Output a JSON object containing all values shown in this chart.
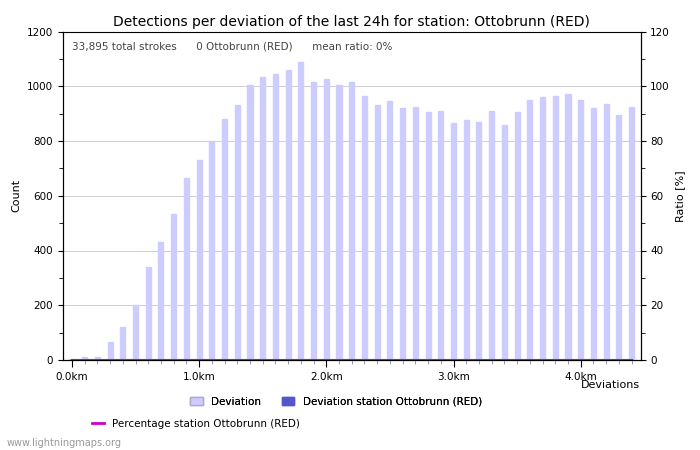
{
  "title": "Detections per deviation of the last 24h for station: Ottobrunn (RED)",
  "annotation": "33,895 total strokes      0 Ottobrunn (RED)      mean ratio: 0%",
  "xlabel": "Deviations",
  "ylabel_left": "Count",
  "ylabel_right": "Ratio [%]",
  "ylim_left": [
    0,
    1200
  ],
  "ylim_right": [
    0,
    120
  ],
  "yticks_left": [
    0,
    200,
    400,
    600,
    800,
    1000,
    1200
  ],
  "yticks_right": [
    0,
    20,
    40,
    60,
    80,
    100,
    120
  ],
  "xtick_labels": [
    "0.0km",
    "1.0km",
    "2.0km",
    "3.0km",
    "4.0km"
  ],
  "xtick_positions": [
    0,
    10,
    20,
    30,
    40
  ],
  "bar_color_light": "#ccccff",
  "bar_color_dark": "#5555cc",
  "line_color": "#cc00cc",
  "background_color": "#ffffff",
  "watermark": "www.lightningmaps.org",
  "deviation_counts": [
    5,
    10,
    10,
    65,
    120,
    200,
    340,
    430,
    535,
    665,
    730,
    800,
    880,
    930,
    1005,
    1035,
    1045,
    1060,
    1090,
    1015,
    1025,
    1005,
    1015,
    965,
    930,
    945,
    920,
    925,
    905,
    910,
    865,
    875,
    870,
    910,
    860,
    905,
    950,
    960,
    965,
    970,
    950,
    920,
    935,
    895,
    925
  ],
  "station_counts": [
    0,
    0,
    0,
    0,
    0,
    0,
    0,
    0,
    0,
    0,
    0,
    0,
    0,
    0,
    0,
    0,
    0,
    0,
    0,
    0,
    0,
    0,
    0,
    0,
    0,
    0,
    0,
    0,
    0,
    0,
    0,
    0,
    0,
    0,
    0,
    0,
    0,
    0,
    0,
    0,
    0,
    0,
    0,
    0,
    0
  ],
  "ratio_values": [
    0,
    0,
    0,
    0,
    0,
    0,
    0,
    0,
    0,
    0,
    0,
    0,
    0,
    0,
    0,
    0,
    0,
    0,
    0,
    0,
    0,
    0,
    0,
    0,
    0,
    0,
    0,
    0,
    0,
    0,
    0,
    0,
    0,
    0,
    0,
    0,
    0,
    0,
    0,
    0,
    0,
    0,
    0,
    0,
    0
  ],
  "title_fontsize": 10,
  "label_fontsize": 8,
  "tick_fontsize": 7.5,
  "annotation_fontsize": 7.5,
  "watermark_fontsize": 7,
  "legend_fontsize": 7.5,
  "bar_width": 0.4,
  "grid_color": "#bbbbbb"
}
